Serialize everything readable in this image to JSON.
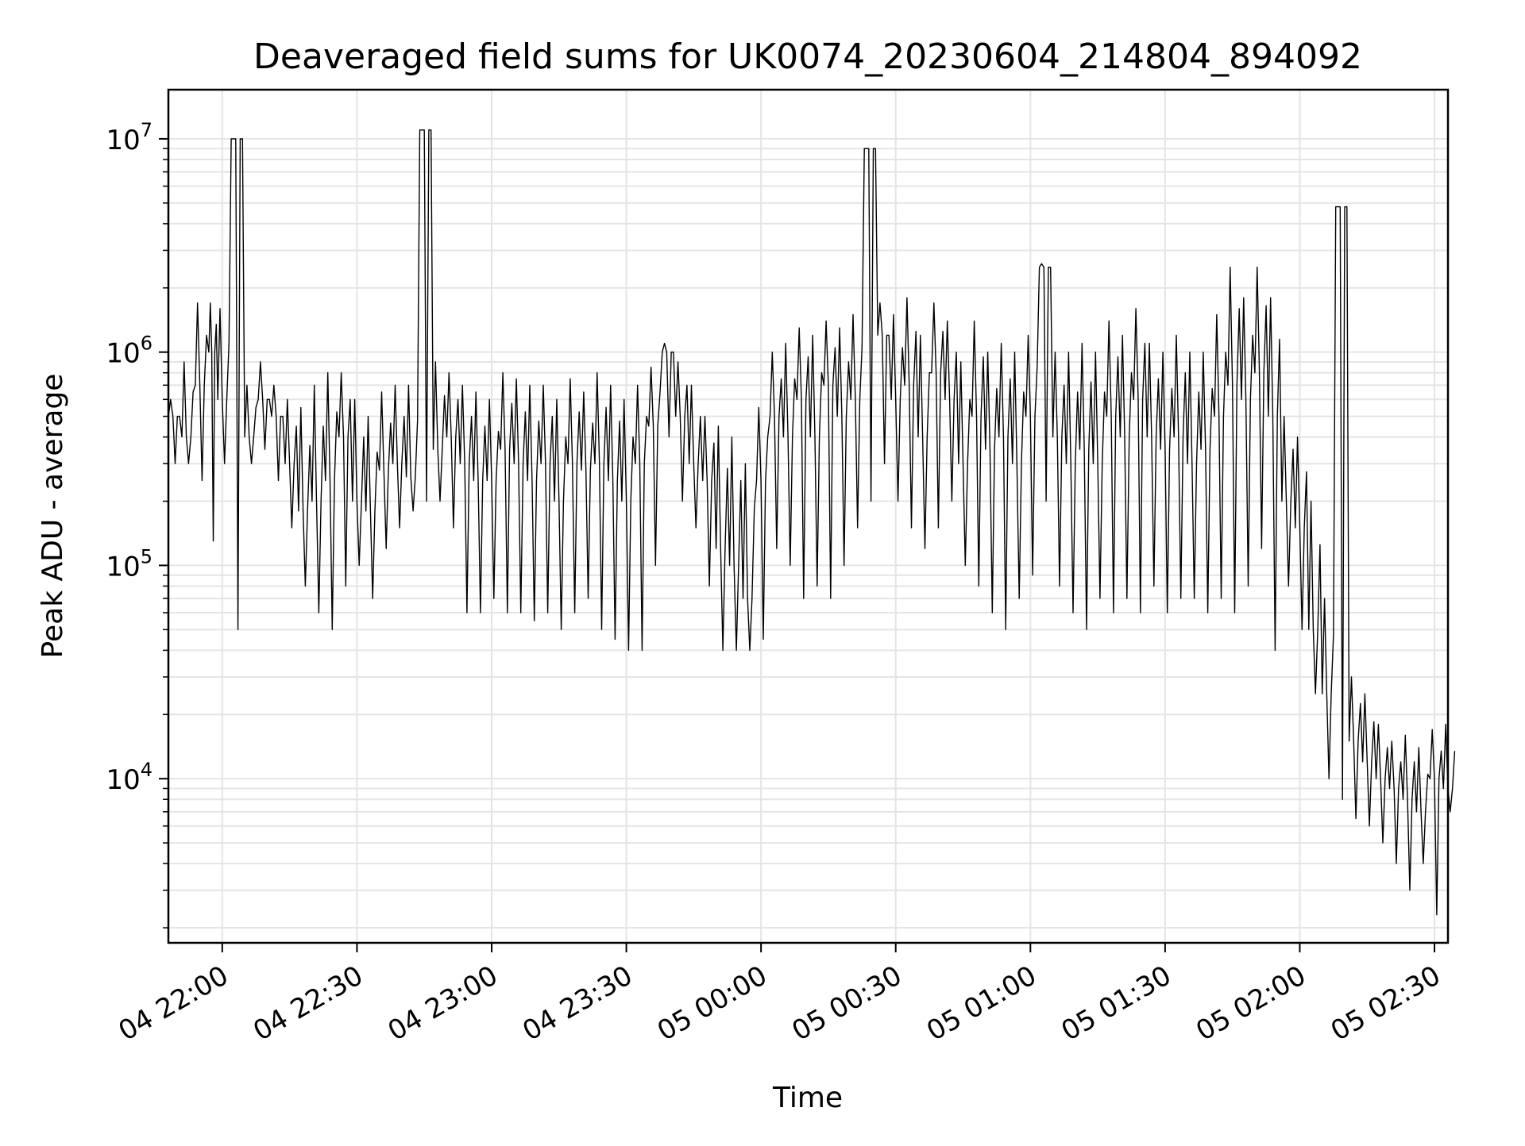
{
  "chart_data": {
    "type": "line",
    "title": "Deaveraged field sums for UK0074_20230604_214804_894092",
    "xlabel": "Time",
    "ylabel": "Peak ADU - average",
    "y_scale": "log",
    "grid": true,
    "grid_color": "#e4e4e4",
    "line_color": "#000000",
    "x_ticks": [
      "04 22:00",
      "04 22:30",
      "04 23:00",
      "04 23:30",
      "05 00:00",
      "05 00:30",
      "05 01:00",
      "05 01:30",
      "05 02:00",
      "05 02:30"
    ],
    "y_ticks": [
      {
        "base": "10",
        "exp": "4",
        "value": 10000
      },
      {
        "base": "10",
        "exp": "5",
        "value": 100000
      },
      {
        "base": "10",
        "exp": "6",
        "value": 1000000
      },
      {
        "base": "10",
        "exp": "7",
        "value": 10000000
      }
    ],
    "xlim": [
      "2023-06-04T21:48",
      "2023-06-05T02:33"
    ],
    "ylim": [
      1700,
      17000000
    ],
    "series": [
      {
        "x": [
          "2023-06-04T21:48",
          "2023-06-04T21:51",
          "2023-06-04T21:54",
          "2023-06-04T21:57",
          "2023-06-04T21:59",
          "2023-06-04T22:02",
          "2023-06-04T22:05",
          "2023-06-04T22:08",
          "2023-06-04T22:11",
          "2023-06-04T22:14",
          "2023-06-04T22:17",
          "2023-06-04T22:20",
          "2023-06-04T22:23",
          "2023-06-04T22:26",
          "2023-06-04T22:29",
          "2023-06-04T22:32",
          "2023-06-04T22:35",
          "2023-06-04T22:38",
          "2023-06-04T22:41",
          "2023-06-04T22:44",
          "2023-06-04T22:47",
          "2023-06-04T22:50",
          "2023-06-04T22:53",
          "2023-06-04T22:56",
          "2023-06-04T22:59",
          "2023-06-04T23:02",
          "2023-06-04T23:05",
          "2023-06-04T23:08",
          "2023-06-04T23:11",
          "2023-06-04T23:14",
          "2023-06-04T23:17",
          "2023-06-04T23:20",
          "2023-06-04T23:23",
          "2023-06-04T23:26",
          "2023-06-04T23:29",
          "2023-06-04T23:32",
          "2023-06-04T23:35",
          "2023-06-04T23:38",
          "2023-06-04T23:41",
          "2023-06-04T23:44",
          "2023-06-04T23:47",
          "2023-06-04T23:50",
          "2023-06-04T23:53",
          "2023-06-04T23:56",
          "2023-06-04T23:59",
          "2023-06-05T00:02",
          "2023-06-05T00:05",
          "2023-06-05T00:08",
          "2023-06-05T00:11",
          "2023-06-05T00:14",
          "2023-06-05T00:17",
          "2023-06-05T00:20",
          "2023-06-05T00:23",
          "2023-06-05T00:26",
          "2023-06-05T00:29",
          "2023-06-05T00:32",
          "2023-06-05T00:35",
          "2023-06-05T00:38",
          "2023-06-05T00:41",
          "2023-06-05T00:44",
          "2023-06-05T00:47",
          "2023-06-05T00:50",
          "2023-06-05T00:53",
          "2023-06-05T00:56",
          "2023-06-05T00:59",
          "2023-06-05T01:02",
          "2023-06-05T01:05",
          "2023-06-05T01:08",
          "2023-06-05T01:11",
          "2023-06-05T01:14",
          "2023-06-05T01:17",
          "2023-06-05T01:20",
          "2023-06-05T01:23",
          "2023-06-05T01:26",
          "2023-06-05T01:29",
          "2023-06-05T01:32",
          "2023-06-05T01:35",
          "2023-06-05T01:38",
          "2023-06-05T01:41",
          "2023-06-05T01:44",
          "2023-06-05T01:47",
          "2023-06-05T01:50",
          "2023-06-05T01:53",
          "2023-06-05T01:56",
          "2023-06-05T01:59",
          "2023-06-05T02:02",
          "2023-06-05T02:05",
          "2023-06-05T02:08",
          "2023-06-05T02:11",
          "2023-06-05T02:14",
          "2023-06-05T02:17",
          "2023-06-05T02:20",
          "2023-06-05T02:23",
          "2023-06-05T02:26",
          "2023-06-05T02:29",
          "2023-06-05T02:32"
        ],
        "y": [
          500000,
          400000,
          700000,
          1000000,
          600000,
          10000000,
          400000,
          600000,
          500000,
          300000,
          180000,
          200000,
          250000,
          400000,
          200000,
          180000,
          280000,
          300000,
          260000,
          11000000,
          350000,
          400000,
          300000,
          250000,
          250000,
          350000,
          300000,
          250000,
          300000,
          200000,
          300000,
          280000,
          300000,
          250000,
          200000,
          300000,
          450000,
          1000000,
          500000,
          300000,
          250000,
          120000,
          100000,
          70000,
          250000,
          500000,
          400000,
          600000,
          400000,
          700000,
          500000,
          600000,
          9000000,
          1200000,
          600000,
          700000,
          400000,
          800000,
          600000,
          300000,
          500000,
          350000,
          400000,
          300000,
          500000,
          2500000,
          400000,
          300000,
          350000,
          300000,
          500000,
          400000,
          600000,
          400000,
          350000,
          400000,
          300000,
          350000,
          500000,
          700000,
          600000,
          800000,
          500000,
          200000,
          150000,
          50000,
          25000,
          4800000,
          15000,
          12000,
          10000,
          9000,
          8000,
          7000,
          10000,
          9000
        ],
        "highs": [
          600000,
          900000,
          1700000,
          1700000,
          1600000,
          10000000,
          700000,
          900000,
          700000,
          600000,
          550000,
          700000,
          800000,
          800000,
          600000,
          500000,
          650000,
          700000,
          700000,
          11000000,
          900000,
          800000,
          700000,
          650000,
          600000,
          800000,
          750000,
          700000,
          700000,
          600000,
          750000,
          650000,
          800000,
          700000,
          600000,
          700000,
          850000,
          1100000,
          900000,
          700000,
          500000,
          450000,
          400000,
          300000,
          550000,
          1000000,
          1100000,
          1300000,
          1200000,
          1400000,
          1300000,
          1500000,
          9000000,
          1700000,
          1500000,
          1800000,
          1200000,
          1700000,
          1400000,
          900000,
          1400000,
          1000000,
          1100000,
          1000000,
          1200000,
          2600000,
          1000000,
          1000000,
          1100000,
          1000000,
          1400000,
          1200000,
          1600000,
          1100000,
          1000000,
          1200000,
          1000000,
          1000000,
          1500000,
          2500000,
          1800000,
          2500000,
          1800000,
          500000,
          400000,
          200000,
          70000,
          4800000,
          30000,
          25000,
          18000,
          15000,
          16000,
          14000,
          17000,
          18000
        ],
        "lows": [
          300000,
          300000,
          250000,
          130000,
          300000,
          50000,
          300000,
          350000,
          250000,
          150000,
          80000,
          60000,
          50000,
          80000,
          100000,
          70000,
          120000,
          150000,
          180000,
          200000,
          200000,
          150000,
          60000,
          60000,
          70000,
          60000,
          60000,
          55000,
          60000,
          50000,
          60000,
          70000,
          50000,
          45000,
          40000,
          40000,
          100000,
          400000,
          200000,
          150000,
          80000,
          40000,
          40000,
          40000,
          45000,
          120000,
          100000,
          70000,
          80000,
          70000,
          100000,
          150000,
          200000,
          300000,
          200000,
          150000,
          120000,
          150000,
          200000,
          100000,
          80000,
          60000,
          50000,
          70000,
          90000,
          200000,
          80000,
          60000,
          50000,
          70000,
          60000,
          70000,
          60000,
          80000,
          60000,
          70000,
          70000,
          60000,
          70000,
          60000,
          80000,
          120000,
          40000,
          80000,
          50000,
          25000,
          10000,
          8000,
          6500,
          6000,
          5000,
          4000,
          3000,
          4000,
          2300,
          7000
        ]
      }
    ]
  }
}
